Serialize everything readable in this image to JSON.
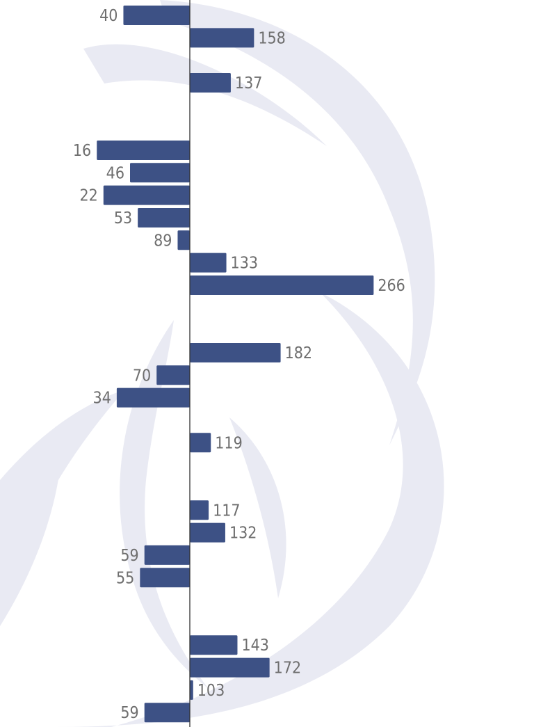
{
  "chart_data": {
    "type": "bar",
    "orientation": "horizontal",
    "baseline": 100,
    "categories": [
      "",
      "",
      "",
      "",
      "",
      "",
      "",
      "",
      "",
      "",
      "",
      "",
      "",
      "",
      "",
      "",
      "",
      "",
      "",
      "",
      "",
      "",
      "",
      "",
      "",
      "",
      "",
      "",
      "",
      "",
      "",
      ""
    ],
    "values": [
      40,
      158,
      null,
      137,
      null,
      null,
      16,
      46,
      22,
      53,
      89,
      133,
      266,
      null,
      null,
      182,
      70,
      34,
      null,
      119,
      null,
      null,
      117,
      132,
      59,
      55,
      null,
      null,
      143,
      172,
      103,
      59
    ],
    "title": "",
    "xlabel": "",
    "ylabel": "",
    "grid": false,
    "legend": "none",
    "colors": {
      "bar": "#3d5185",
      "axis": "#333333",
      "label": "#6e6e6e",
      "watermark": "#e9eaf3"
    }
  }
}
